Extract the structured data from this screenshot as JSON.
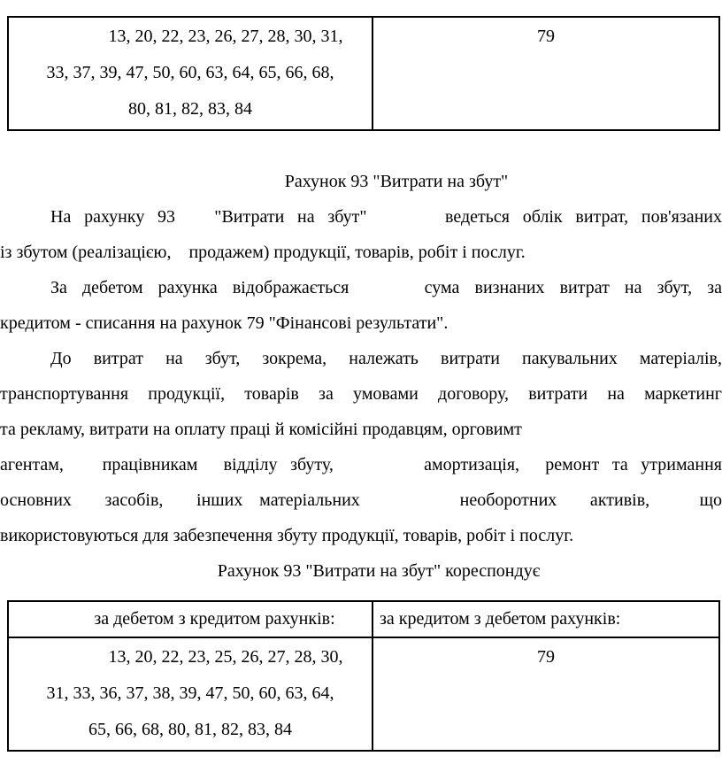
{
  "page": {
    "background": "#ffffff",
    "text_color": "#000000",
    "border_color": "#000000"
  },
  "top_table": {
    "debit_lines": [
      "13, 20, 22, 23, 26, 27, 28, 30, 31,",
      "33, 37, 39, 47, 50, 60, 63, 64, 65, 66, 68,",
      "80, 81, 82, 83, 84"
    ],
    "credit_value": "79"
  },
  "body": {
    "heading1": "Рахунок 93 \"Витрати на збут\"",
    "paragraph_lines": [
      "На рахунку 93   \"Витрати на збут\"      ведеться облік витрат, пов'язаних",
      "із збутом (реалізацією,    продажем) продукції, товарів, робіт і послуг.",
      "За дебетом рахунка відображається     сума визнаних витрат на збут, за",
      "кредитом - списання на рахунок 79 \"Фінансові результати\".",
      "До витрат на збут, зокрема, належать витрати пакувальних матеріалів,",
      "транспортування продукції, товарів за умовами договору, витрати на маркетинг",
      "та рекламу, витрати на оплату праці й комісійні продавцям, орговимт",
      "агентам,   працівникам  відділу збуту,       амортизація,  ремонт та утримання",
      "основних  засобів,  інших матеріальних      необоротних  активів,   що",
      "використовуються для забезпечення збуту продукції, товарів, робіт і послуг."
    ],
    "heading2": "Рахунок 93 \"Витрати на збут\" кореспондує"
  },
  "bottom_table": {
    "header_left": "за дебетом з кредитом рахунків:",
    "header_right": "за кредитом з дебетом рахунків:",
    "debit_lines": [
      "13, 20, 22, 23, 25, 26, 27, 28, 30,",
      "31, 33, 36, 37, 38, 39, 47, 50, 60, 63, 64,",
      "65, 66, 68, 80, 81, 82, 83, 84"
    ],
    "credit_value": "79"
  }
}
